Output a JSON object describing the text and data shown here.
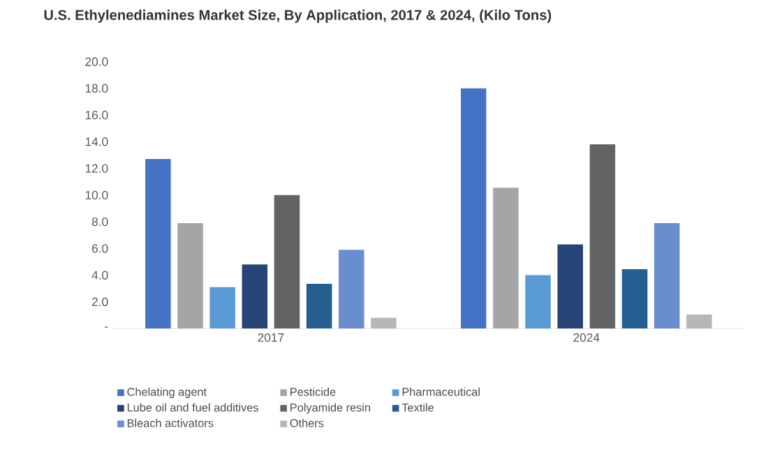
{
  "chart_data": {
    "type": "bar",
    "title": "U.S. Ethylenediamines Market Size, By Application, 2017 & 2024, (Kilo Tons)",
    "categories": [
      "2017",
      "2024"
    ],
    "series": [
      {
        "name": "Chelating agent",
        "color": "#4472c4",
        "values": [
          12.7,
          18.0
        ]
      },
      {
        "name": "Pesticide",
        "color": "#a5a5a5",
        "values": [
          7.9,
          10.55
        ]
      },
      {
        "name": "Pharmaceutical",
        "color": "#5b9bd5",
        "values": [
          3.1,
          4.0
        ]
      },
      {
        "name": "Lube oil and fuel additives",
        "color": "#264478",
        "values": [
          4.8,
          6.3
        ]
      },
      {
        "name": "Polyamide resin",
        "color": "#636363",
        "values": [
          10.0,
          13.8
        ]
      },
      {
        "name": "Textile",
        "color": "#255e91",
        "values": [
          3.35,
          4.45
        ]
      },
      {
        "name": "Bleach activators",
        "color": "#698ed0",
        "values": [
          5.9,
          7.9
        ]
      },
      {
        "name": "Others",
        "color": "#b7b7b7",
        "values": [
          0.8,
          1.05
        ]
      }
    ],
    "ylim": [
      0,
      20
    ],
    "yticks": [
      {
        "value": 0,
        "label": "-"
      },
      {
        "value": 2,
        "label": "2.0"
      },
      {
        "value": 4,
        "label": "4.0"
      },
      {
        "value": 6,
        "label": "6.0"
      },
      {
        "value": 8,
        "label": "8.0"
      },
      {
        "value": 10,
        "label": "10.0"
      },
      {
        "value": 12,
        "label": "12.0"
      },
      {
        "value": 14,
        "label": "14.0"
      },
      {
        "value": 16,
        "label": "16.0"
      },
      {
        "value": 18,
        "label": "18.0"
      },
      {
        "value": 20,
        "label": "20.0"
      }
    ],
    "legend": "bottom",
    "grid": false
  }
}
